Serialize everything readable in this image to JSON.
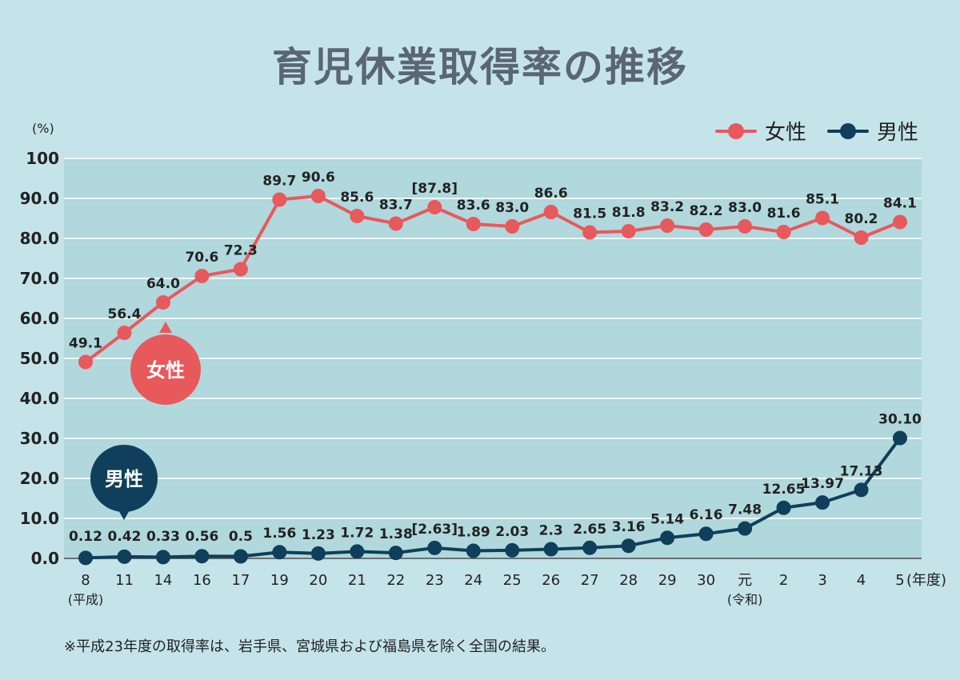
{
  "title": "育児休業取得率の推移",
  "legend": {
    "female": "女性",
    "male": "男性"
  },
  "colors": {
    "background": "#c5e4ea",
    "plot_band": "#b0d8dd",
    "female": "#e8595c",
    "male": "#0f3f5a",
    "title": "#5a6670"
  },
  "footnote": "※平成23年度の取得率は、岩手県、宮城県および福島県を除く全国の結果。",
  "callouts": {
    "female": "女性",
    "male": "男性"
  },
  "chart_data": {
    "type": "line",
    "title": "育児休業取得率の推移",
    "ylabel": "(%)",
    "xlabel": "(年度)",
    "ylim": [
      0,
      100
    ],
    "yticks": [
      "0.0",
      "10.0",
      "20.0",
      "30.0",
      "40.0",
      "50.0",
      "60.0",
      "70.0",
      "80.0",
      "90.0",
      "100"
    ],
    "grid": true,
    "legend_position": "top-right",
    "categories": [
      "8",
      "11",
      "14",
      "16",
      "17",
      "19",
      "20",
      "21",
      "22",
      "23",
      "24",
      "25",
      "26",
      "27",
      "28",
      "29",
      "30",
      "元",
      "2",
      "3",
      "4",
      "5"
    ],
    "category_sublabels": [
      {
        "index": 0,
        "text": "(平成)"
      },
      {
        "index": 17,
        "text": "(令和)"
      }
    ],
    "series": [
      {
        "name": "女性",
        "values": [
          49.1,
          56.4,
          64.0,
          70.6,
          72.3,
          89.7,
          90.6,
          85.6,
          83.7,
          87.8,
          83.6,
          83.0,
          86.6,
          81.5,
          81.8,
          83.2,
          82.2,
          83.0,
          81.6,
          85.1,
          80.2,
          84.1
        ],
        "labels": [
          "49.1",
          "56.4",
          "64.0",
          "70.6",
          "72.3",
          "89.7",
          "90.6",
          "85.6",
          "83.7",
          "[87.8]",
          "83.6",
          "83.0",
          "86.6",
          "81.5",
          "81.8",
          "83.2",
          "82.2",
          "83.0",
          "81.6",
          "85.1",
          "80.2",
          "84.1"
        ]
      },
      {
        "name": "男性",
        "values": [
          0.12,
          0.42,
          0.33,
          0.56,
          0.5,
          1.56,
          1.23,
          1.72,
          1.38,
          2.63,
          1.89,
          2.03,
          2.3,
          2.65,
          3.16,
          5.14,
          6.16,
          7.48,
          12.65,
          13.97,
          17.13,
          30.1
        ],
        "labels": [
          "0.12",
          "0.42",
          "0.33",
          "0.56",
          "0.5",
          "1.56",
          "1.23",
          "1.72",
          "1.38",
          "[2.63]",
          "1.89",
          "2.03",
          "2.3",
          "2.65",
          "3.16",
          "5.14",
          "6.16",
          "7.48",
          "12.65",
          "13.97",
          "17.13",
          "30.10"
        ]
      }
    ]
  }
}
